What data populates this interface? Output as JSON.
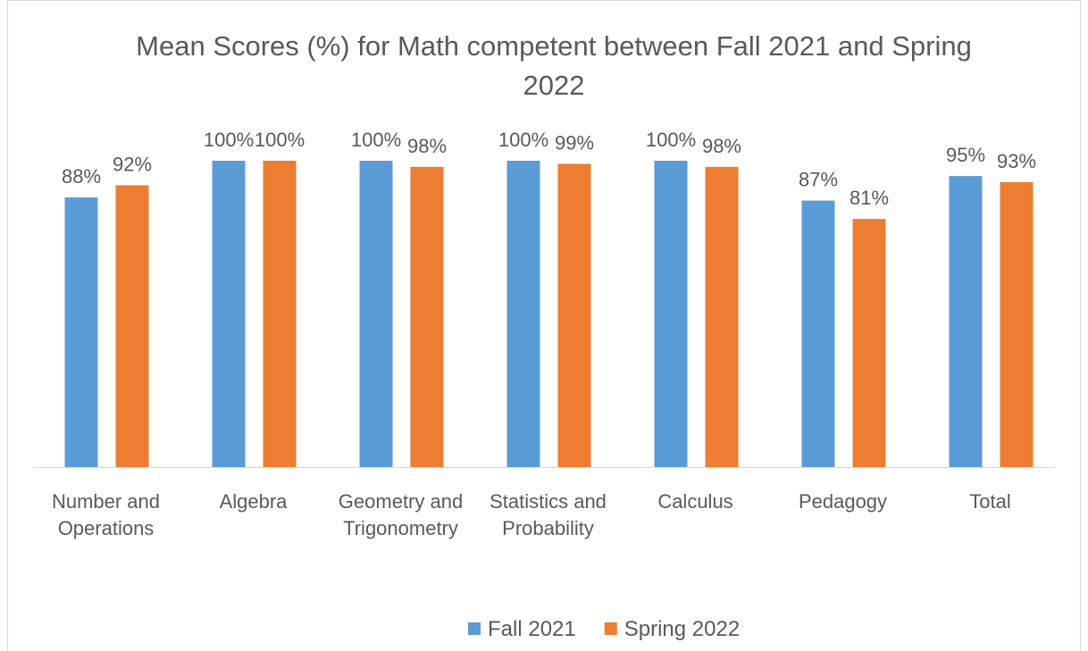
{
  "chart_data": {
    "type": "bar",
    "title": "Mean Scores (%) for Math competent between  Fall 2021 and Spring 2022",
    "categories": [
      "Number and Operations",
      "Algebra",
      "Geometry and Trigonometry",
      "Statistics and Probability",
      "Calculus",
      "Pedagogy",
      "Total"
    ],
    "series": [
      {
        "name": "Fall 2021",
        "color": "#5b9bd5",
        "values": [
          88,
          100,
          100,
          100,
          100,
          87,
          95
        ],
        "value_labels": [
          "88%",
          "100%",
          "100%",
          "100%",
          "100%",
          "87%",
          "95%"
        ]
      },
      {
        "name": "Spring 2022",
        "color": "#ed7d31",
        "values": [
          92,
          100,
          98,
          99,
          98,
          81,
          93
        ],
        "value_labels": [
          "92%",
          "100%",
          "98%",
          "99%",
          "98%",
          "81%",
          "93%"
        ]
      }
    ],
    "ylim": [
      0,
      100
    ],
    "grid": false,
    "legend": "bottom"
  }
}
